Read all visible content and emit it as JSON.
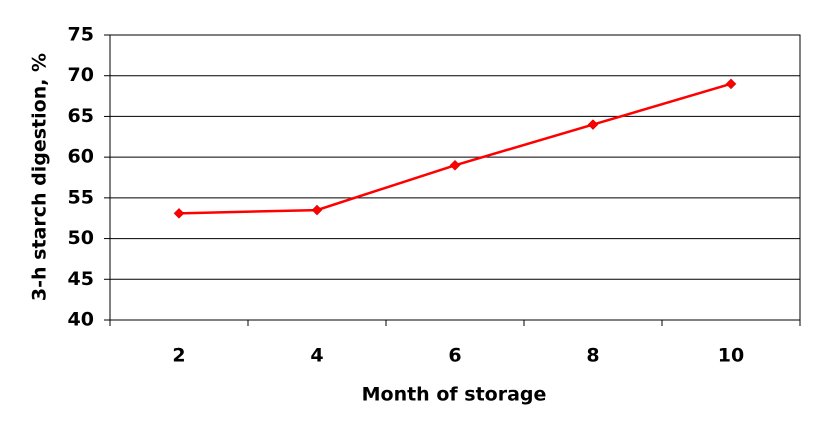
{
  "chart_data": {
    "type": "line",
    "x_label": "Month of storage",
    "y_label": "3-h starch digestion, %",
    "categories": [
      "2",
      "4",
      "6",
      "8",
      "10"
    ],
    "series": [
      {
        "name": "3-h starch digestion",
        "color": "#ff0000",
        "values": [
          53.1,
          53.5,
          59,
          64,
          69
        ]
      }
    ],
    "ylim": [
      40,
      75
    ],
    "yticks": [
      40,
      45,
      50,
      55,
      60,
      65,
      70,
      75
    ],
    "grid": true
  }
}
